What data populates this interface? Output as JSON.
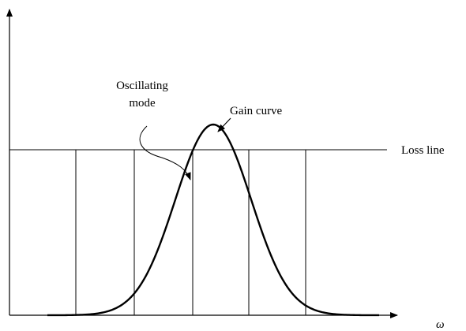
{
  "annotations": {
    "oscillating_mode": [
      "Oscillating",
      "mode"
    ],
    "gain_curve": "Gain curve",
    "loss_line": "Loss line",
    "x_axis_label": "ω"
  }
}
